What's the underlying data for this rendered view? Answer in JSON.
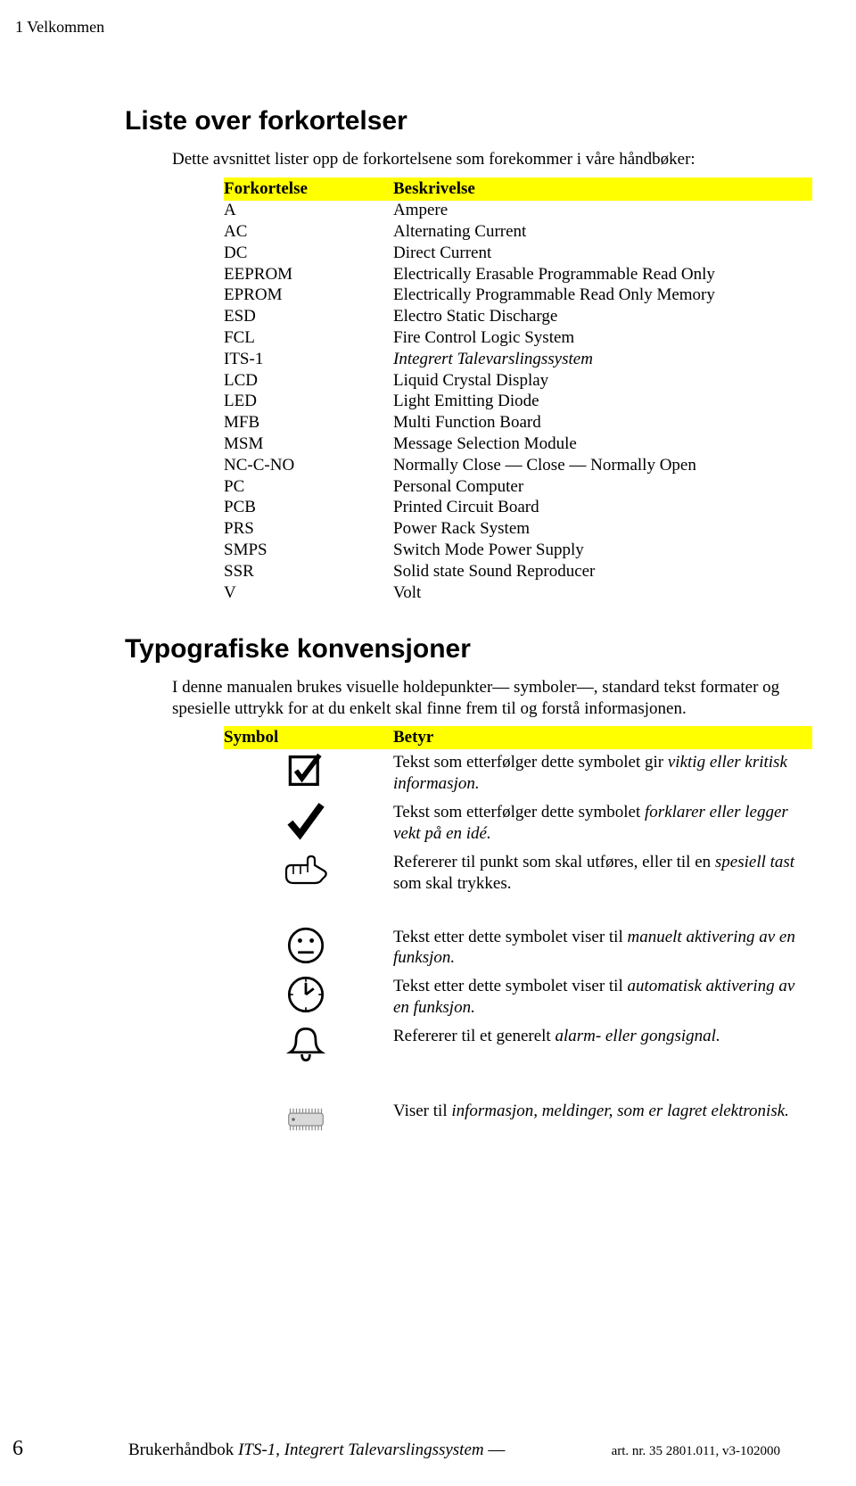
{
  "header": "1 Velkommen",
  "section1": {
    "title": "Liste over forkortelser",
    "intro": "Dette avsnittet lister opp de forkortelsene som forekommer i våre håndbøker:",
    "col1": "Forkortelse",
    "col2": "Beskrivelse",
    "rows": [
      {
        "abbr": "A",
        "desc": "Ampere"
      },
      {
        "abbr": "AC",
        "desc": "Alternating Current"
      },
      {
        "abbr": "DC",
        "desc": "Direct Current"
      },
      {
        "abbr": "EEPROM",
        "desc": "Electrically Erasable Programmable Read Only"
      },
      {
        "abbr": "EPROM",
        "desc": "Electrically Programmable Read Only Memory"
      },
      {
        "abbr": "ESD",
        "desc": "Electro Static Discharge"
      },
      {
        "abbr": "FCL",
        "desc": "Fire Control Logic System"
      },
      {
        "abbr": "ITS-1",
        "desc": "Integrert Talevarslingssystem",
        "italic": true
      },
      {
        "abbr": "LCD",
        "desc": "Liquid Crystal Display"
      },
      {
        "abbr": "LED",
        "desc": "Light Emitting Diode"
      },
      {
        "abbr": "MFB",
        "desc": "Multi Function Board"
      },
      {
        "abbr": "MSM",
        "desc": "Message Selection Module"
      },
      {
        "abbr": "NC-C-NO",
        "desc": "Normally Close — Close — Normally Open"
      },
      {
        "abbr": "PC",
        "desc": "Personal Computer"
      },
      {
        "abbr": "PCB",
        "desc": "Printed Circuit Board"
      },
      {
        "abbr": "PRS",
        "desc": "Power Rack System"
      },
      {
        "abbr": "SMPS",
        "desc": "Switch Mode Power Supply"
      },
      {
        "abbr": "SSR",
        "desc": "Solid state Sound Reproducer"
      },
      {
        "abbr": "V",
        "desc": "Volt"
      }
    ]
  },
  "section2": {
    "title": "Typografiske konvensjoner",
    "intro": "I denne manualen brukes visuelle holdepunkter— symboler—, standard tekst formater og spesielle uttrykk for at du enkelt skal finne frem til og forstå informasjonen.",
    "col1": "Symbol",
    "col2": "Betyr",
    "rows": [
      {
        "icon": "checkbox",
        "pre": "Tekst som etterfølger dette symbolet gir ",
        "em": "viktig eller kritisk informasjon."
      },
      {
        "icon": "check",
        "pre": "Tekst som etterfølger dette symbolet ",
        "em": "forklarer eller legger vekt på en idé."
      },
      {
        "icon": "hand",
        "pre": "Refererer til punkt som skal utføres, eller til en ",
        "em": "spesiell tast",
        "post": " som skal trykkes."
      },
      {
        "gap": true
      },
      {
        "icon": "face",
        "pre": "Tekst etter dette symbolet viser til ",
        "em": "manuelt aktivering av en funksjon."
      },
      {
        "icon": "clock",
        "pre": "Tekst etter dette symbolet viser til ",
        "em": "automatisk aktivering av en funksjon."
      },
      {
        "icon": "bell",
        "pre": "Refererer til et generelt ",
        "em": "alarm- eller gongsignal."
      },
      {
        "gap": true
      },
      {
        "icon": "chip",
        "pre": "Viser til ",
        "em": "informasjon, meldinger, som er lagret elektronisk."
      }
    ]
  },
  "footer": {
    "page": "6",
    "title_pre": "Brukerhåndbok ",
    "title_em": "ITS-1, Integrert Talevarslingssystem",
    "title_post": " —",
    "art": "art. nr. 35 2801.011, v3-102000"
  },
  "icons": {
    "checkbox": "<svg class='sym-svg' viewBox='0 0 48 40'><rect x='8' y='6' width='28' height='28' fill='none' stroke='#000' stroke-width='3'/><path d='M14 20 L20 28 L38 4' fill='none' stroke='#000' stroke-width='5'/></svg>",
    "check": "<svg class='sym-svg' viewBox='0 0 48 40'><path d='M8 22 L18 34 L40 4' fill='none' stroke='#000' stroke-width='7'/></svg>",
    "hand": "<svg class='sym-svg' viewBox='0 0 56 40'><path d='M6 20 Q6 14 12 14 L30 14 L30 8 Q30 4 34 4 Q38 4 38 8 L38 14 L48 20 Q52 22 50 26 L46 30 Q44 34 38 34 L14 34 Q6 34 6 26 Z' fill='none' stroke='#000' stroke-width='2.2'/><line x1='30' y1='14' x2='30' y2='22' stroke='#000' stroke-width='1.6'/><line x1='22' y1='14' x2='22' y2='24' stroke='#000' stroke-width='1.6'/><line x1='14' y1='14' x2='14' y2='24' stroke='#000' stroke-width='1.6'/></svg>",
    "face": "<svg class='sym-svg' viewBox='0 0 48 40'><circle cx='24' cy='20' r='17' fill='none' stroke='#000' stroke-width='2.5'/><circle cx='18' cy='15' r='2.2' fill='#000'/><circle cx='30' cy='15' r='2.2' fill='#000'/><line x1='16' y1='27' x2='32' y2='27' stroke='#000' stroke-width='2.5'/></svg>",
    "clock": "<svg class='sym-svg' viewBox='0 0 48 40'><circle cx='24' cy='20' r='17' fill='none' stroke='#000' stroke-width='2.5'/><line x1='24' y1='20' x2='24' y2='8'  stroke='#000' stroke-width='2.5'/><line x1='24' y1='20' x2='32' y2='14' stroke='#000' stroke-width='2.5'/><g stroke='#000' stroke-width='1.5'><line x1='24' y1='3' x2='24' y2='7'/><line x1='24' y1='33' x2='24' y2='37'/><line x1='7' y1='20' x2='11' y2='20'/><line x1='37' y1='20' x2='41' y2='20'/></g></svg>",
    "bell": "<svg class='sym-svg' viewBox='0 0 48 40'><path d='M24 4 Q14 4 14 16 Q14 24 8 28 L40 28 Q34 24 34 16 Q34 4 24 4 Z' fill='none' stroke='#000' stroke-width='2.5'/><path d='M20 30 Q20 36 24 36 Q28 36 28 30' fill='none' stroke='#000' stroke-width='2.5'/></svg>",
    "chip": "<svg class='sym-svg' viewBox='0 0 64 32'><rect x='10' y='8' width='44' height='16' rx='3' fill='#d9d9d9' stroke='#666' stroke-width='1'/><circle cx='16' cy='16' r='2' fill='#666'/><g stroke='#888' stroke-width='1.4'><line x1='12' y1='24' x2='12' y2='30'/><line x1='16' y1='24' x2='16' y2='30'/><line x1='20' y1='24' x2='20' y2='30'/><line x1='24' y1='24' x2='24' y2='30'/><line x1='28' y1='24' x2='28' y2='30'/><line x1='32' y1='24' x2='32' y2='30'/><line x1='36' y1='24' x2='36' y2='30'/><line x1='40' y1='24' x2='40' y2='30'/><line x1='44' y1='24' x2='44' y2='30'/><line x1='48' y1='24' x2='48' y2='30'/><line x1='52' y1='24' x2='52' y2='30'/><line x1='12' y1='8' x2='12' y2='2'/><line x1='16' y1='8' x2='16' y2='2'/><line x1='20' y1='8' x2='20' y2='2'/><line x1='24' y1='8' x2='24' y2='2'/><line x1='28' y1='8' x2='28' y2='2'/><line x1='32' y1='8' x2='32' y2='2'/><line x1='36' y1='8' x2='36' y2='2'/><line x1='40' y1='8' x2='40' y2='2'/><line x1='44' y1='8' x2='44' y2='2'/><line x1='48' y1='8' x2='48' y2='2'/><line x1='52' y1='8' x2='52' y2='2'/></g></svg>"
  }
}
